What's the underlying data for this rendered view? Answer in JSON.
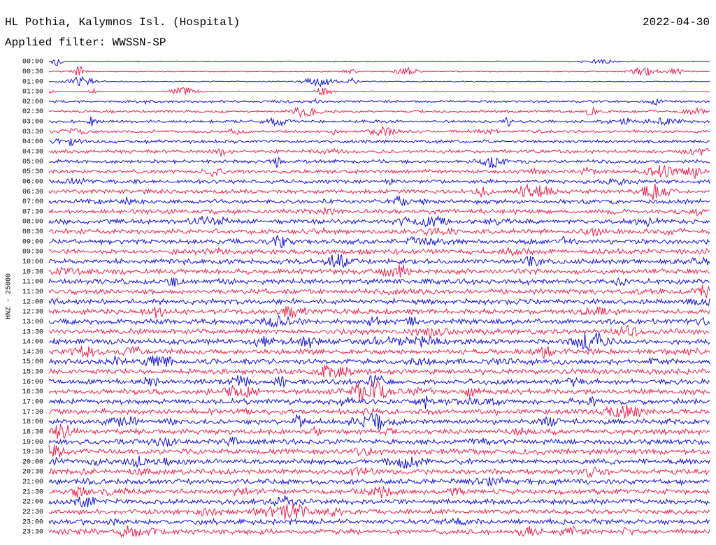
{
  "header": {
    "station": "HL Pothia, Kalymnos Isl. (Hospital)",
    "date": "2022-04-30",
    "filter": "Applied filter: WWSSN-SP"
  },
  "axis_label": "HNZ - 25000",
  "rows": [
    "00:00",
    "00:30",
    "01:00",
    "01:30",
    "02:00",
    "02:30",
    "03:00",
    "03:30",
    "04:00",
    "04:30",
    "05:00",
    "05:30",
    "06:00",
    "06:30",
    "07:00",
    "07:30",
    "08:00",
    "08:30",
    "09:00",
    "09:30",
    "10:00",
    "10:30",
    "11:00",
    "11:30",
    "12:00",
    "12:30",
    "13:00",
    "13:30",
    "14:00",
    "14:30",
    "15:00",
    "15:30",
    "16:00",
    "16:30",
    "17:00",
    "17:30",
    "18:00",
    "18:30",
    "19:00",
    "19:30",
    "20:00",
    "20:30",
    "21:00",
    "21:30",
    "22:00",
    "22:30",
    "23:00",
    "23:30"
  ],
  "trace_colors": [
    "#1010e0",
    "#f0204c"
  ]
}
